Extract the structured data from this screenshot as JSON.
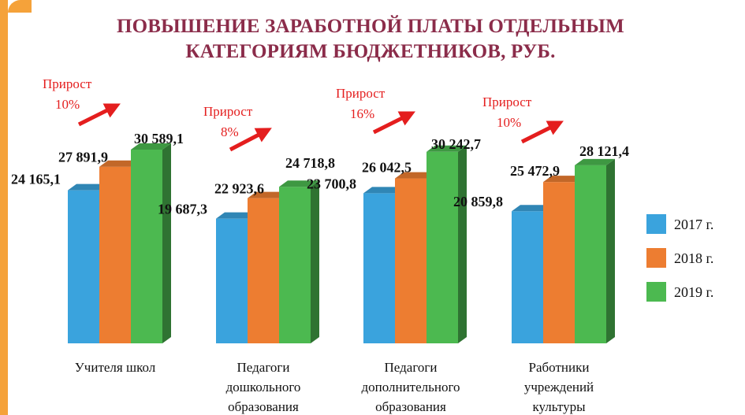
{
  "chart_data": {
    "type": "bar",
    "title": "ПОВЫШЕНИЕ ЗАРАБОТНОЙ ПЛАТЫ ОТДЕЛЬНЫМ КАТЕГОРИЯМ БЮДЖЕТНИКОВ, РУБ.",
    "title_lines": [
      "ПОВЫШЕНИЕ ЗАРАБОТНОЙ ПЛАТЫ ОТДЕЛЬНЫМ",
      "КАТЕГОРИЯМ БЮДЖЕТНИКОВ, РУБ."
    ],
    "categories": [
      [
        "Учителя школ"
      ],
      [
        "Педагоги",
        "дошкольного",
        "образования"
      ],
      [
        "Педагоги",
        "дополнительного",
        "образования"
      ],
      [
        "Работники",
        "учреждений",
        "культуры"
      ]
    ],
    "series": [
      {
        "name": "2017 г.",
        "color": "#3aa3dd",
        "values": [
          24165.1,
          19687.3,
          23700.8,
          20859.8
        ],
        "labels": [
          "24 165,1",
          "19 687,3",
          "23 700,8",
          "20 859,8"
        ]
      },
      {
        "name": "2018 г.",
        "color": "#ed7d31",
        "values": [
          27891.9,
          22923.6,
          26042.5,
          25472.9
        ],
        "labels": [
          "27 891,9",
          "22 923,6",
          "26 042,5",
          "25 472,9"
        ]
      },
      {
        "name": "2019 г.",
        "color": "#4cb950",
        "values": [
          30589.1,
          24718.8,
          30242.7,
          28121.4
        ],
        "labels": [
          "30 589,1",
          "24 718,8",
          "30 242,7",
          "28 121,4"
        ]
      }
    ],
    "growth": [
      {
        "label": "Прирост",
        "value": "10%"
      },
      {
        "label": "Прирост",
        "value": "8%"
      },
      {
        "label": "Прирост",
        "value": "16%"
      },
      {
        "label": "Прирост",
        "value": "10%"
      }
    ],
    "ylim": [
      0,
      32000
    ],
    "grid": false,
    "legend_position": "right"
  }
}
